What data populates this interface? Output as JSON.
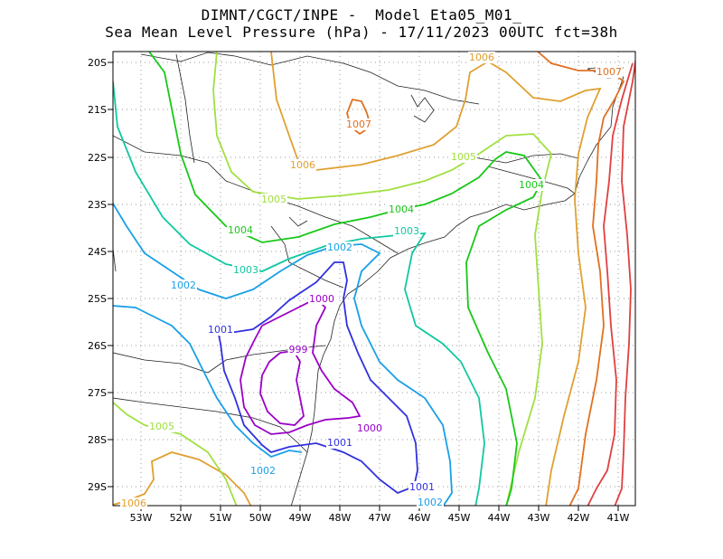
{
  "title_line1": "DIMNT/CGCT/INPE -  Model Eta05_M01_",
  "title_line2": "Sea Mean Level Pressure (hPa) - 17/11/2023 00UTC fct=38h",
  "lat_ticks": [
    "20S",
    "21S",
    "22S",
    "23S",
    "24S",
    "25S",
    "26S",
    "27S",
    "28S",
    "29S"
  ],
  "lon_ticks": [
    "53W",
    "52W",
    "51W",
    "50W",
    "49W",
    "48W",
    "47W",
    "46W",
    "45W",
    "44W",
    "43W",
    "42W",
    "41W"
  ],
  "colors": {
    "999": "#9a00c8",
    "1000": "#9a00c8",
    "1001": "#3030e0",
    "1002": "#18a0e8",
    "1003": "#10c8a0",
    "1004": "#18c818",
    "1005": "#a0e040",
    "1006": "#e0a030",
    "1007": "#e07020",
    "1008": "#e04040"
  },
  "contour_labels": [
    {
      "text": "1006",
      "level": "1006"
    },
    {
      "text": "1007",
      "level": "1007"
    },
    {
      "text": "1007",
      "level": "1007"
    },
    {
      "text": "1006",
      "level": "1006"
    },
    {
      "text": "1005",
      "level": "1005"
    },
    {
      "text": "1005",
      "level": "1005"
    },
    {
      "text": "1004",
      "level": "1004"
    },
    {
      "text": "1004",
      "level": "1004"
    },
    {
      "text": "1004",
      "level": "1004"
    },
    {
      "text": "1003",
      "level": "1003"
    },
    {
      "text": "1003",
      "level": "1003"
    },
    {
      "text": "1002",
      "level": "1002"
    },
    {
      "text": "1002",
      "level": "1002"
    },
    {
      "text": "1000",
      "level": "1000"
    },
    {
      "text": "1001",
      "level": "1001"
    },
    {
      "text": "999",
      "level": "999"
    },
    {
      "text": "1000",
      "level": "1000"
    },
    {
      "text": "1001",
      "level": "1001"
    },
    {
      "text": "1005",
      "level": "1005"
    },
    {
      "text": "1002",
      "level": "1002"
    },
    {
      "text": "1001",
      "level": "1001"
    },
    {
      "text": "1002",
      "level": "1002"
    },
    {
      "text": "1006",
      "level": "1006"
    }
  ]
}
